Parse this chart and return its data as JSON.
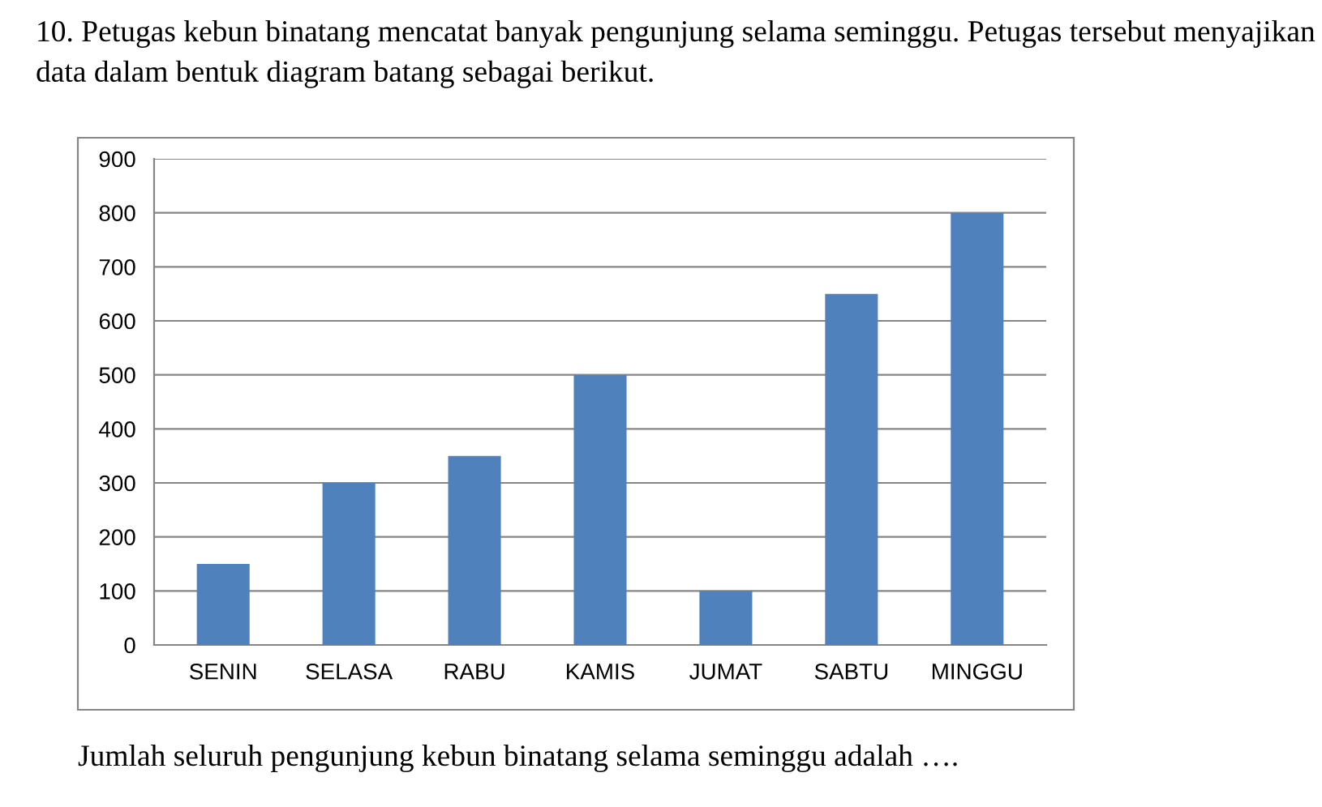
{
  "chart_data": {
    "type": "bar",
    "title": "10. Petugas kebun binatang mencatat banyak pengunjung selama seminggu. Petugas tersebut menyajikan data dalam bentuk diagram batang sebagai berikut.",
    "annotations": [
      "Jumlah seluruh pengunjung kebun binatang selama seminggu adalah …."
    ],
    "categories": [
      "SENIN",
      "SELASA",
      "RABU",
      "KAMIS",
      "JUMAT",
      "SABTU",
      "MINGGU"
    ],
    "values": [
      150,
      300,
      350,
      500,
      100,
      650,
      800
    ],
    "color": "#4f81bd",
    "ylim": [
      0,
      900
    ],
    "yticks": [
      0,
      100,
      200,
      300,
      400,
      500,
      600,
      700,
      800,
      900
    ],
    "grid": "y"
  }
}
